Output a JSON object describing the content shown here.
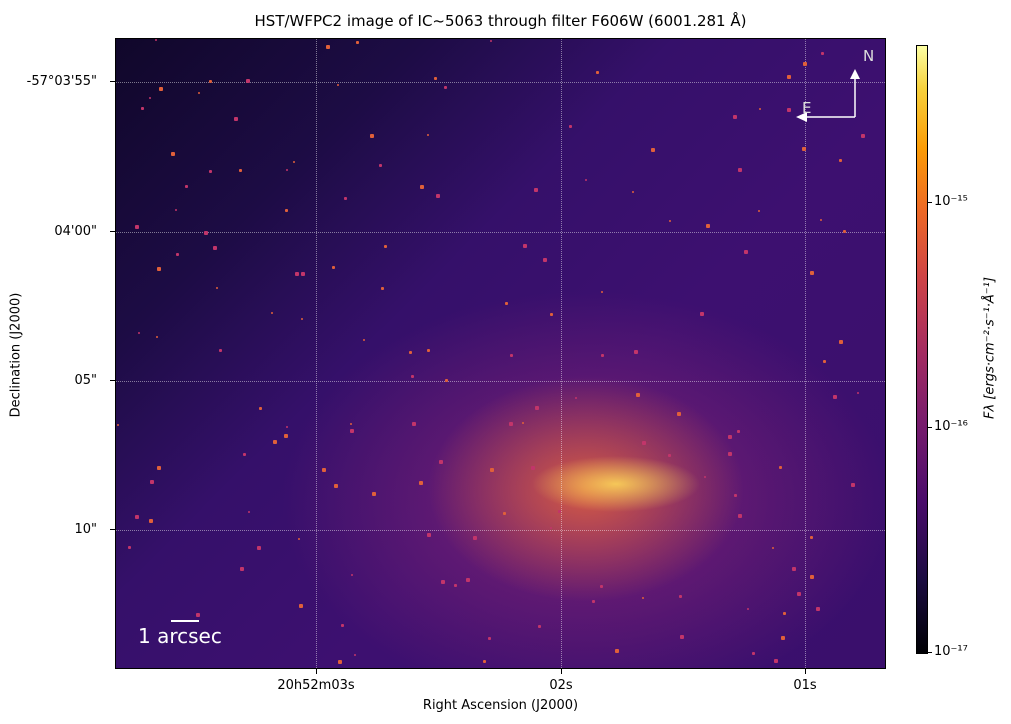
{
  "chart_data": {
    "type": "heatmap",
    "title": "HST/WFPC2 image of IC~5063 through filter F606W (6001.281 Å)",
    "xlabel": "Right Ascension (J2000)",
    "ylabel": "Declination (J2000)",
    "x_ticks": [
      "20h52m03s",
      "02s",
      "01s"
    ],
    "y_ticks": [
      "-57°03'55\"",
      "04'00\"",
      "05\"",
      "10\""
    ],
    "grid": true,
    "colormap": "inferno",
    "colorbar": {
      "label": "Fλ [ergs·cm⁻²·s⁻¹·Å⁻¹]",
      "scale": "log",
      "range": [
        1e-17,
        5e-15
      ],
      "ticks": [
        "10⁻¹⁷",
        "10⁻¹⁶",
        "10⁻¹⁵"
      ]
    },
    "annotations": {
      "scale_bar": "1 arcsec",
      "compass_north": "N",
      "compass_east": "E"
    }
  }
}
